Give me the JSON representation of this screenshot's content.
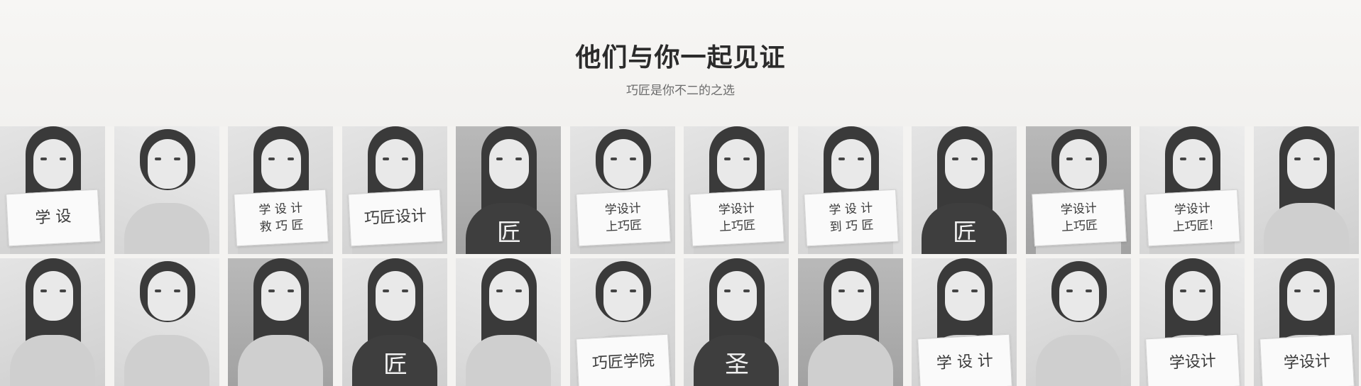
{
  "header": {
    "title": "他们与你一起见证",
    "subtitle": "巧匠是你不二的之选"
  },
  "tiles": [
    {
      "sign": "学 设",
      "style": "plain"
    },
    {
      "sign": "",
      "style": "plain"
    },
    {
      "sign": "学 设 计\n救 巧 匠",
      "style": "plain"
    },
    {
      "sign": "巧匠设计",
      "style": "plain"
    },
    {
      "sign": "匠",
      "style": "tshirt"
    },
    {
      "sign": "学设计\n上巧匠",
      "style": "plain"
    },
    {
      "sign": "学设计\n上巧匠",
      "style": "plain"
    },
    {
      "sign": "学 设 计\n到 巧 匠",
      "style": "plain"
    },
    {
      "sign": "匠",
      "style": "tshirt"
    },
    {
      "sign": "学设计\n上巧匠",
      "style": "plain"
    },
    {
      "sign": "学设计\n上巧匠!",
      "style": "plain"
    },
    {
      "sign": "",
      "style": "plain"
    },
    {
      "sign": "",
      "style": "plain"
    },
    {
      "sign": "",
      "style": "plain"
    },
    {
      "sign": "",
      "style": "plain"
    },
    {
      "sign": "匠",
      "style": "tshirt"
    },
    {
      "sign": "",
      "style": "plain"
    },
    {
      "sign": "巧匠学院",
      "style": "plain"
    },
    {
      "sign": "圣",
      "style": "tshirt"
    },
    {
      "sign": "",
      "style": "plain"
    },
    {
      "sign": "学 设 计",
      "style": "plain"
    },
    {
      "sign": "",
      "style": "plain"
    },
    {
      "sign": "学设计",
      "style": "plain"
    },
    {
      "sign": "学设计",
      "style": "plain"
    }
  ]
}
